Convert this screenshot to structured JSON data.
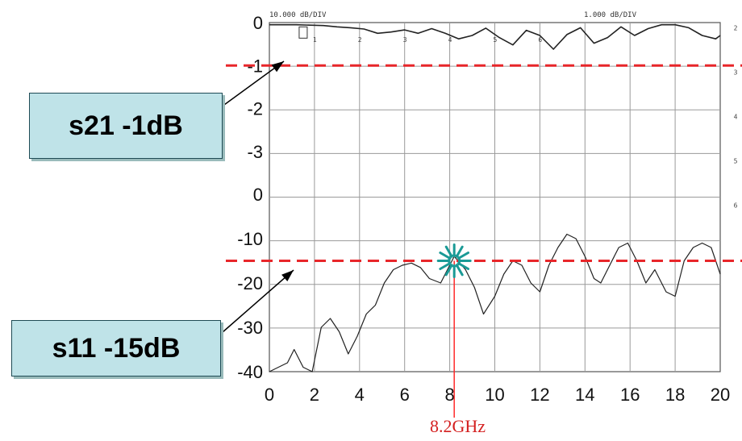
{
  "chart_data": {
    "type": "line",
    "scale_labels": {
      "left": "10.000 dB/DIV",
      "right": "1.000 dB/DIV"
    },
    "x_ticks": [
      "0",
      "2",
      "4",
      "6",
      "8",
      "10",
      "12",
      "14",
      "16",
      "18",
      "20"
    ],
    "y_ticks_upper": [
      "0",
      "-1",
      "-2",
      "-3"
    ],
    "y_ticks_lower": [
      "0",
      "-10",
      "-20",
      "-30",
      "-40"
    ],
    "right_ticks": [
      "2",
      "3",
      "4",
      "5",
      "6"
    ],
    "trace_markers": [
      "1",
      "2",
      "3",
      "4",
      "5",
      "6"
    ],
    "xlim": [
      0,
      20
    ],
    "grid": true,
    "series": [
      {
        "key": "s21",
        "panel": "upper",
        "ylim": [
          -4,
          0
        ],
        "x": [
          0,
          0.6,
          1.2,
          1.8,
          2.4,
          3.0,
          3.6,
          4.2,
          4.8,
          5.4,
          6.0,
          6.6,
          7.2,
          7.8,
          8.4,
          9.0,
          9.6,
          10.2,
          10.8,
          11.4,
          12.0,
          12.6,
          13.2,
          13.8,
          14.4,
          15.0,
          15.6,
          16.2,
          16.8,
          17.4,
          18.0,
          18.6,
          19.2,
          19.8,
          20.0
        ],
        "y": [
          -0.05,
          -0.05,
          -0.05,
          -0.06,
          -0.07,
          -0.1,
          -0.12,
          -0.15,
          -0.25,
          -0.22,
          -0.17,
          -0.25,
          -0.14,
          -0.25,
          -0.38,
          -0.3,
          -0.13,
          -0.35,
          -0.52,
          -0.18,
          -0.3,
          -0.62,
          -0.28,
          -0.12,
          -0.48,
          -0.35,
          -0.1,
          -0.3,
          -0.14,
          -0.05,
          -0.05,
          -0.12,
          -0.3,
          -0.38,
          -0.3
        ]
      },
      {
        "key": "s11",
        "panel": "lower",
        "ylim": [
          -40,
          0
        ],
        "x": [
          0,
          0.4,
          0.8,
          1.1,
          1.5,
          1.9,
          2.3,
          2.7,
          3.1,
          3.5,
          3.9,
          4.3,
          4.7,
          5.1,
          5.5,
          5.9,
          6.3,
          6.7,
          7.1,
          7.6,
          8.2,
          8.7,
          9.1,
          9.5,
          10.0,
          10.4,
          10.8,
          11.2,
          11.6,
          12.0,
          12.4,
          12.8,
          13.2,
          13.6,
          14.0,
          14.4,
          14.7,
          15.1,
          15.5,
          15.9,
          16.3,
          16.7,
          17.1,
          17.6,
          18.0,
          18.4,
          18.8,
          19.2,
          19.6,
          20.0
        ],
        "y": [
          -40,
          -39,
          -38,
          -35,
          -39,
          -40,
          -30,
          -28,
          -31,
          -36,
          -32,
          -27,
          -25,
          -20,
          -17,
          -16,
          -15.5,
          -16.5,
          -19,
          -20,
          -14,
          -17,
          -21,
          -27,
          -23,
          -18,
          -15,
          -16,
          -20,
          -22,
          -16,
          -12,
          -9,
          -10,
          -14,
          -19,
          -20,
          -16,
          -12,
          -11,
          -15,
          -20,
          -17,
          -22,
          -23,
          -15,
          -12,
          -11,
          -12,
          -18
        ]
      }
    ],
    "thresholds": [
      {
        "series": "s21",
        "value": -1
      },
      {
        "series": "s11",
        "value": -15
      }
    ],
    "marker": {
      "x": 8.2,
      "label": "8.2GHz"
    },
    "colors": {
      "trace": "#222222",
      "threshold": "#e8262a",
      "marker": "#1a9a96",
      "cursor": "#ff2a2a",
      "grid": "#9a9a9a"
    }
  },
  "annotations": {
    "s21": "s21 -1dB",
    "s11": "s11 -15dB"
  }
}
